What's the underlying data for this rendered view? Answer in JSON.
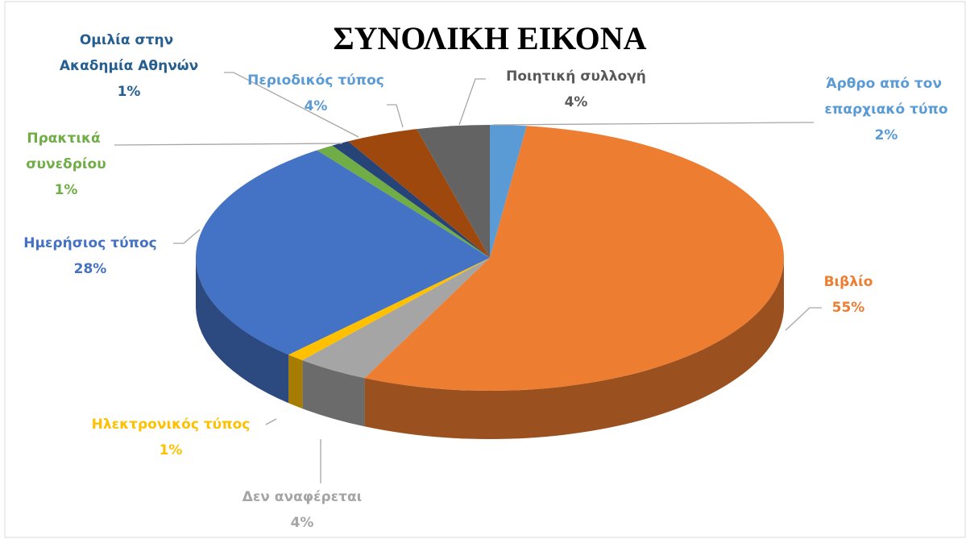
{
  "chart_data": {
    "type": "pie3d",
    "title": "ΣΥΝΟΛΙΚΗ ΕΙΚΟΝΑ",
    "categories": [
      "Άρθρο από τον επαρχιακό τύπο",
      "Βιβλίο",
      "Δεν αναφέρεται",
      "Ηλεκτρονικός τύπος",
      "Ημερήσιος τύπος",
      "Πρακτικά συνεδρίου",
      "Ομιλία στην Ακαδημία Αθηνών",
      "Περιοδικός τύπος",
      "Ποιητική συλλογή"
    ],
    "values": [
      2,
      55,
      4,
      1,
      28,
      1,
      1,
      4,
      4
    ],
    "value_labels": [
      "2%",
      "55%",
      "4%",
      "1%",
      "28%",
      "1%",
      "1%",
      "4%",
      "4%"
    ],
    "colors": [
      "#5b9bd5",
      "#ed7d31",
      "#a5a5a5",
      "#ffc000",
      "#4472c4",
      "#70ad47",
      "#264478",
      "#9e480e",
      "#636363"
    ]
  }
}
